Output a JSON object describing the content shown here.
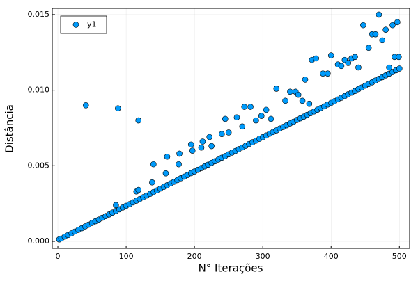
{
  "chart_data": {
    "type": "scatter",
    "xlabel": "N° Iterações",
    "ylabel": "Distância",
    "series": [
      {
        "name": "y1",
        "color": "#009afa",
        "x": [
          2,
          5,
          10,
          15,
          20,
          25,
          30,
          35,
          40,
          45,
          50,
          55,
          60,
          65,
          70,
          75,
          80,
          85,
          90,
          95,
          100,
          105,
          110,
          115,
          120,
          125,
          130,
          135,
          140,
          145,
          150,
          155,
          160,
          165,
          170,
          175,
          180,
          185,
          190,
          195,
          200,
          205,
          210,
          215,
          220,
          225,
          230,
          235,
          240,
          245,
          250,
          255,
          260,
          265,
          270,
          275,
          280,
          285,
          290,
          295,
          300,
          305,
          310,
          315,
          320,
          325,
          330,
          335,
          340,
          345,
          350,
          355,
          360,
          365,
          370,
          375,
          380,
          385,
          390,
          395,
          400,
          405,
          410,
          415,
          420,
          425,
          430,
          435,
          440,
          445,
          450,
          455,
          460,
          465,
          470,
          475,
          480,
          485,
          490,
          495,
          500,
          41,
          88,
          118,
          85,
          115,
          118,
          138,
          140,
          158,
          160,
          177,
          178,
          195,
          197,
          210,
          212,
          222,
          225,
          240,
          245,
          250,
          262,
          270,
          273,
          282,
          290,
          298,
          305,
          312,
          320,
          333,
          340,
          348,
          352,
          358,
          362,
          368,
          372,
          378,
          388,
          395,
          400,
          410,
          415,
          420,
          425,
          430,
          435,
          440,
          447,
          455,
          460,
          465,
          470,
          475,
          480,
          485,
          490,
          493,
          497,
          499
        ],
        "values": [
          0.00013,
          0.00019,
          0.00031,
          0.00042,
          0.00053,
          0.00065,
          0.00076,
          0.00087,
          0.00099,
          0.0011,
          0.00122,
          0.00133,
          0.00144,
          0.00156,
          0.00167,
          0.00178,
          0.0019,
          0.00201,
          0.00212,
          0.00224,
          0.00235,
          0.00246,
          0.00258,
          0.00269,
          0.0028,
          0.00292,
          0.00303,
          0.00314,
          0.00326,
          0.00337,
          0.00349,
          0.0036,
          0.00371,
          0.00383,
          0.00394,
          0.00405,
          0.00417,
          0.00428,
          0.00439,
          0.00451,
          0.00462,
          0.00473,
          0.00485,
          0.00496,
          0.00507,
          0.00519,
          0.0053,
          0.00541,
          0.00553,
          0.00564,
          0.00576,
          0.00587,
          0.00598,
          0.0061,
          0.00621,
          0.00632,
          0.00644,
          0.00655,
          0.00666,
          0.00678,
          0.00689,
          0.007,
          0.00712,
          0.00723,
          0.00734,
          0.00746,
          0.00757,
          0.00768,
          0.0078,
          0.00791,
          0.00803,
          0.00814,
          0.00825,
          0.00837,
          0.00848,
          0.00859,
          0.00871,
          0.00882,
          0.00893,
          0.00905,
          0.00916,
          0.00927,
          0.00939,
          0.0095,
          0.00961,
          0.00973,
          0.00984,
          0.00995,
          0.01007,
          0.01018,
          0.0103,
          0.01041,
          0.01052,
          0.01064,
          0.01075,
          0.01086,
          0.01098,
          0.01109,
          0.0112,
          0.01132,
          0.01143,
          0.009,
          0.0088,
          0.008,
          0.0024,
          0.0033,
          0.0034,
          0.0039,
          0.0051,
          0.0045,
          0.0056,
          0.0051,
          0.0058,
          0.0064,
          0.006,
          0.0062,
          0.0066,
          0.0069,
          0.0063,
          0.0071,
          0.0081,
          0.0072,
          0.0082,
          0.0076,
          0.0089,
          0.0089,
          0.008,
          0.0083,
          0.0087,
          0.0081,
          0.0101,
          0.0093,
          0.0099,
          0.0099,
          0.0097,
          0.0093,
          0.0107,
          0.0091,
          0.012,
          0.0121,
          0.0111,
          0.0111,
          0.0123,
          0.0117,
          0.0116,
          0.012,
          0.0118,
          0.0121,
          0.0122,
          0.0115,
          0.0143,
          0.0128,
          0.0137,
          0.0137,
          0.015,
          0.0133,
          0.014,
          0.0115,
          0.0143,
          0.0122,
          0.0145,
          0.0122
        ]
      }
    ],
    "xlim": [
      -8.2,
      515
    ],
    "ylim": [
      -0.00046,
      0.01541
    ],
    "xticks": [
      0,
      100,
      200,
      300,
      400,
      500
    ],
    "yticks": [
      {
        "value": 0,
        "label": "0.000"
      },
      {
        "value": 0.005,
        "label": "0.005"
      },
      {
        "value": 0.01,
        "label": "0.010"
      },
      {
        "value": 0.015,
        "label": "0.015"
      }
    ],
    "grid": true,
    "legend": "upper left"
  }
}
